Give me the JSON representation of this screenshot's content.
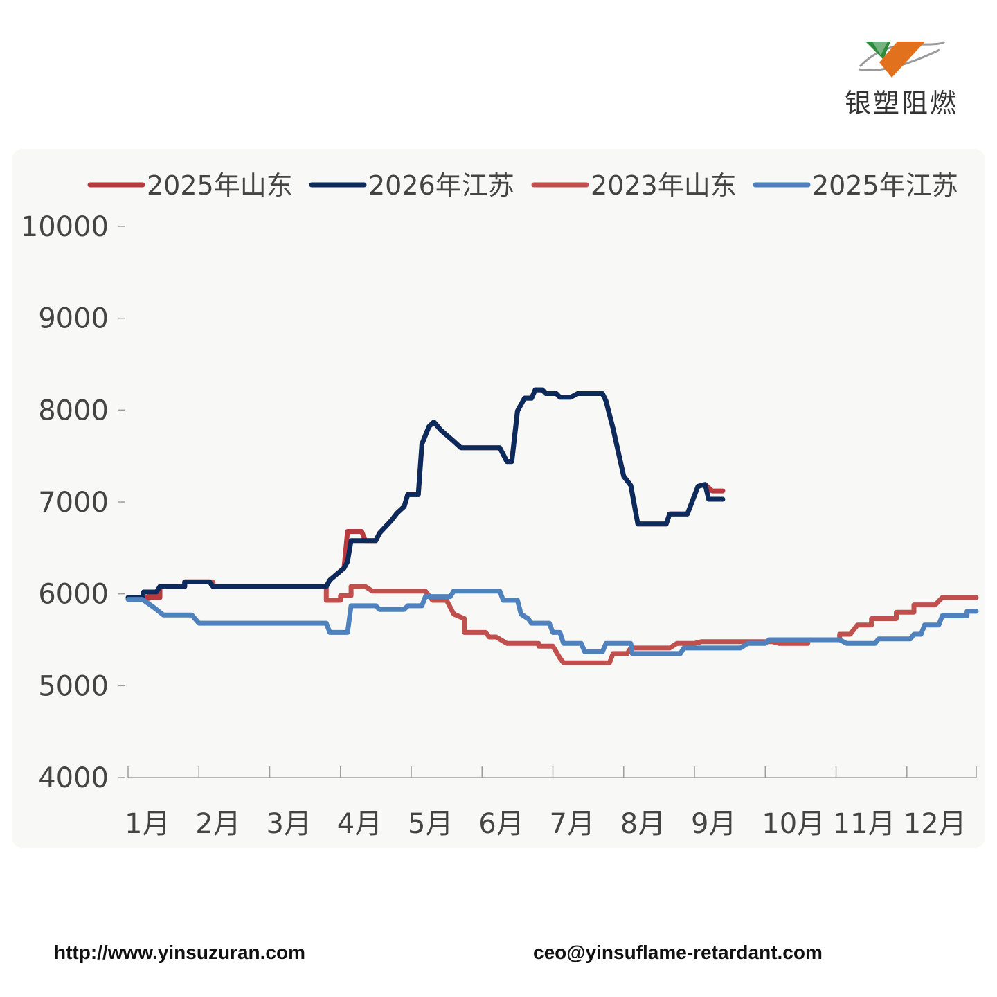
{
  "logo": {
    "text": "银塑阻燃",
    "colors": {
      "green": "#2e8b3c",
      "orange": "#e2711d",
      "ring": "#9a9a9a"
    }
  },
  "chart_data": {
    "type": "line",
    "title": "",
    "xlabel": "",
    "ylabel": "",
    "ylim": [
      4000,
      10000
    ],
    "y_ticks": [
      "4000",
      "5000",
      "6000",
      "7000",
      "8000",
      "9000",
      "10000"
    ],
    "x_categories": [
      "1月",
      "2月",
      "3月",
      "4月",
      "5月",
      "6月",
      "7月",
      "8月",
      "9月",
      "10月",
      "11月",
      "12月"
    ],
    "x_domain": [
      1,
      12.98
    ],
    "grid": false,
    "legend_position": "top",
    "series": [
      {
        "name": "2023年山东",
        "color": "#c0504d",
        "points": [
          [
            1.0,
            5950
          ],
          [
            1.3,
            5950
          ],
          [
            1.3,
            5980
          ],
          [
            1.45,
            5980
          ],
          [
            1.45,
            6080
          ],
          [
            1.8,
            6080
          ],
          [
            1.8,
            6130
          ],
          [
            2.2,
            6130
          ],
          [
            2.2,
            6080
          ],
          [
            3.8,
            6080
          ],
          [
            3.8,
            5930
          ],
          [
            4.0,
            5930
          ],
          [
            4.0,
            5980
          ],
          [
            4.15,
            5980
          ],
          [
            4.15,
            6080
          ],
          [
            4.35,
            6080
          ],
          [
            4.45,
            6030
          ],
          [
            5.2,
            6030
          ],
          [
            5.3,
            5930
          ],
          [
            5.5,
            5930
          ],
          [
            5.6,
            5780
          ],
          [
            5.75,
            5730
          ],
          [
            5.75,
            5580
          ],
          [
            6.05,
            5580
          ],
          [
            6.1,
            5530
          ],
          [
            6.2,
            5530
          ],
          [
            6.35,
            5460
          ],
          [
            6.8,
            5460
          ],
          [
            6.8,
            5430
          ],
          [
            7.0,
            5430
          ],
          [
            7.1,
            5300
          ],
          [
            7.15,
            5250
          ],
          [
            7.8,
            5250
          ],
          [
            7.85,
            5350
          ],
          [
            8.05,
            5350
          ],
          [
            8.1,
            5410
          ],
          [
            8.65,
            5410
          ],
          [
            8.75,
            5460
          ],
          [
            9.0,
            5460
          ],
          [
            9.1,
            5480
          ],
          [
            10.1,
            5480
          ],
          [
            10.2,
            5460
          ],
          [
            10.6,
            5460
          ],
          [
            10.6,
            5500
          ],
          [
            11.05,
            5500
          ],
          [
            11.05,
            5560
          ],
          [
            11.2,
            5560
          ],
          [
            11.3,
            5660
          ],
          [
            11.5,
            5660
          ],
          [
            11.5,
            5730
          ],
          [
            11.85,
            5730
          ],
          [
            11.85,
            5800
          ],
          [
            12.1,
            5800
          ],
          [
            12.1,
            5880
          ],
          [
            12.4,
            5880
          ],
          [
            12.5,
            5960
          ],
          [
            12.98,
            5960
          ]
        ]
      },
      {
        "name": "2025年山东",
        "color": "#b73a3f",
        "points": [
          [
            1.0,
            5960
          ],
          [
            1.45,
            5960
          ],
          [
            1.45,
            6080
          ],
          [
            1.8,
            6080
          ],
          [
            1.8,
            6130
          ],
          [
            2.15,
            6130
          ],
          [
            2.2,
            6080
          ],
          [
            3.8,
            6080
          ],
          [
            3.85,
            6150
          ],
          [
            4.05,
            6280
          ],
          [
            4.1,
            6680
          ],
          [
            4.3,
            6680
          ],
          [
            4.35,
            6580
          ],
          [
            4.5,
            6580
          ],
          [
            4.55,
            6660
          ],
          [
            4.72,
            6800
          ],
          [
            4.8,
            6880
          ],
          [
            4.9,
            6950
          ],
          [
            4.95,
            7080
          ],
          [
            5.1,
            7080
          ],
          [
            5.15,
            7630
          ],
          [
            5.25,
            7820
          ],
          [
            5.32,
            7870
          ],
          [
            5.42,
            7780
          ],
          [
            5.6,
            7660
          ],
          [
            5.7,
            7590
          ],
          [
            6.25,
            7590
          ],
          [
            6.35,
            7440
          ],
          [
            6.42,
            7440
          ],
          [
            6.5,
            7990
          ],
          [
            6.6,
            8130
          ],
          [
            6.7,
            8130
          ],
          [
            6.75,
            8220
          ],
          [
            6.85,
            8220
          ],
          [
            6.9,
            8180
          ],
          [
            7.05,
            8180
          ],
          [
            7.1,
            8140
          ],
          [
            7.25,
            8140
          ],
          [
            7.35,
            8180
          ],
          [
            7.7,
            8180
          ],
          [
            7.75,
            8100
          ],
          [
            7.85,
            7800
          ],
          [
            8.0,
            7280
          ],
          [
            8.1,
            7180
          ],
          [
            8.2,
            6760
          ],
          [
            8.6,
            6760
          ],
          [
            8.65,
            6870
          ],
          [
            8.8,
            6870
          ],
          [
            8.9,
            6870
          ],
          [
            8.95,
            6970
          ],
          [
            9.05,
            7170
          ],
          [
            9.15,
            7190
          ],
          [
            9.25,
            7120
          ],
          [
            9.4,
            7120
          ]
        ]
      },
      {
        "name": "2026年江苏",
        "color": "#0d2a5c",
        "points": [
          [
            1.0,
            5960
          ],
          [
            1.2,
            5960
          ],
          [
            1.22,
            6020
          ],
          [
            1.4,
            6020
          ],
          [
            1.45,
            6080
          ],
          [
            1.8,
            6080
          ],
          [
            1.8,
            6130
          ],
          [
            2.15,
            6130
          ],
          [
            2.2,
            6080
          ],
          [
            3.8,
            6080
          ],
          [
            3.85,
            6150
          ],
          [
            4.05,
            6280
          ],
          [
            4.1,
            6350
          ],
          [
            4.15,
            6580
          ],
          [
            4.5,
            6580
          ],
          [
            4.55,
            6660
          ],
          [
            4.72,
            6800
          ],
          [
            4.8,
            6880
          ],
          [
            4.9,
            6950
          ],
          [
            4.95,
            7080
          ],
          [
            5.1,
            7080
          ],
          [
            5.15,
            7630
          ],
          [
            5.25,
            7820
          ],
          [
            5.32,
            7870
          ],
          [
            5.42,
            7780
          ],
          [
            5.6,
            7660
          ],
          [
            5.7,
            7590
          ],
          [
            6.25,
            7590
          ],
          [
            6.35,
            7440
          ],
          [
            6.42,
            7440
          ],
          [
            6.5,
            7990
          ],
          [
            6.6,
            8130
          ],
          [
            6.7,
            8130
          ],
          [
            6.75,
            8220
          ],
          [
            6.85,
            8220
          ],
          [
            6.9,
            8180
          ],
          [
            7.05,
            8180
          ],
          [
            7.1,
            8140
          ],
          [
            7.25,
            8140
          ],
          [
            7.35,
            8180
          ],
          [
            7.7,
            8180
          ],
          [
            7.75,
            8100
          ],
          [
            7.85,
            7800
          ],
          [
            8.0,
            7280
          ],
          [
            8.1,
            7180
          ],
          [
            8.2,
            6760
          ],
          [
            8.6,
            6760
          ],
          [
            8.65,
            6870
          ],
          [
            8.8,
            6870
          ],
          [
            8.9,
            6870
          ],
          [
            8.95,
            6970
          ],
          [
            9.05,
            7170
          ],
          [
            9.15,
            7190
          ],
          [
            9.2,
            7030
          ],
          [
            9.4,
            7030
          ]
        ]
      },
      {
        "name": "2025年江苏",
        "color": "#4f81bd",
        "points": [
          [
            1.0,
            5940
          ],
          [
            1.2,
            5940
          ],
          [
            1.35,
            5860
          ],
          [
            1.5,
            5770
          ],
          [
            1.9,
            5770
          ],
          [
            2.0,
            5680
          ],
          [
            3.8,
            5680
          ],
          [
            3.85,
            5580
          ],
          [
            4.1,
            5580
          ],
          [
            4.15,
            5870
          ],
          [
            4.5,
            5870
          ],
          [
            4.55,
            5830
          ],
          [
            4.9,
            5830
          ],
          [
            4.95,
            5870
          ],
          [
            5.15,
            5870
          ],
          [
            5.2,
            5970
          ],
          [
            5.55,
            5970
          ],
          [
            5.6,
            6030
          ],
          [
            6.25,
            6030
          ],
          [
            6.3,
            5930
          ],
          [
            6.5,
            5930
          ],
          [
            6.55,
            5780
          ],
          [
            6.65,
            5730
          ],
          [
            6.7,
            5680
          ],
          [
            6.95,
            5680
          ],
          [
            7.0,
            5580
          ],
          [
            7.1,
            5580
          ],
          [
            7.15,
            5460
          ],
          [
            7.4,
            5460
          ],
          [
            7.45,
            5370
          ],
          [
            7.7,
            5370
          ],
          [
            7.75,
            5460
          ],
          [
            8.1,
            5460
          ],
          [
            8.12,
            5350
          ],
          [
            8.8,
            5350
          ],
          [
            8.85,
            5410
          ],
          [
            9.65,
            5410
          ],
          [
            9.75,
            5460
          ],
          [
            10.0,
            5460
          ],
          [
            10.05,
            5500
          ],
          [
            11.05,
            5500
          ],
          [
            11.15,
            5460
          ],
          [
            11.55,
            5460
          ],
          [
            11.6,
            5510
          ],
          [
            12.05,
            5510
          ],
          [
            12.1,
            5560
          ],
          [
            12.2,
            5560
          ],
          [
            12.25,
            5660
          ],
          [
            12.45,
            5660
          ],
          [
            12.5,
            5760
          ],
          [
            12.85,
            5760
          ],
          [
            12.85,
            5810
          ],
          [
            12.98,
            5810
          ]
        ]
      }
    ]
  },
  "footer": {
    "url": "http://www.yinsuzuran.com",
    "email": "ceo@yinsuflame-retardant.com"
  }
}
